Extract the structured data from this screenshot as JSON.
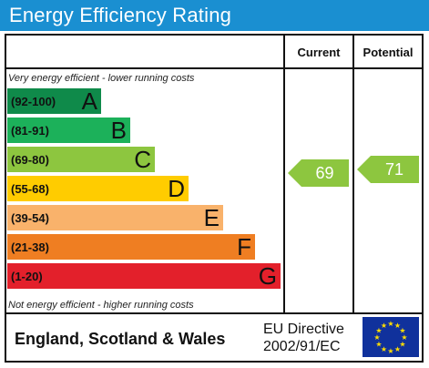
{
  "title": "Energy Efficiency Rating",
  "columns": {
    "current": "Current",
    "potential": "Potential"
  },
  "notes": {
    "top": "Very energy efficient - lower running costs",
    "bottom": "Not energy efficient - higher running costs"
  },
  "bands": [
    {
      "range": "(92-100)",
      "letter": "A",
      "color": "#0f8a4a"
    },
    {
      "range": "(81-91)",
      "letter": "B",
      "color": "#1cb15a"
    },
    {
      "range": "(69-80)",
      "letter": "C",
      "color": "#8dc63f"
    },
    {
      "range": "(55-68)",
      "letter": "D",
      "color": "#ffcc00"
    },
    {
      "range": "(39-54)",
      "letter": "E",
      "color": "#f9b26b"
    },
    {
      "range": "(21-38)",
      "letter": "F",
      "color": "#ef7e22"
    },
    {
      "range": "(1-20)",
      "letter": "G",
      "color": "#e3202b"
    }
  ],
  "ratings": {
    "current": {
      "value": "69",
      "band": "C",
      "color": "#8dc63f"
    },
    "potential": {
      "value": "71",
      "band": "C",
      "color": "#8dc63f"
    }
  },
  "footer": {
    "region": "England, Scotland & Wales",
    "directive_line1": "EU Directive",
    "directive_line2": "2002/91/EC",
    "flag_icon": "eu-flag-icon"
  }
}
